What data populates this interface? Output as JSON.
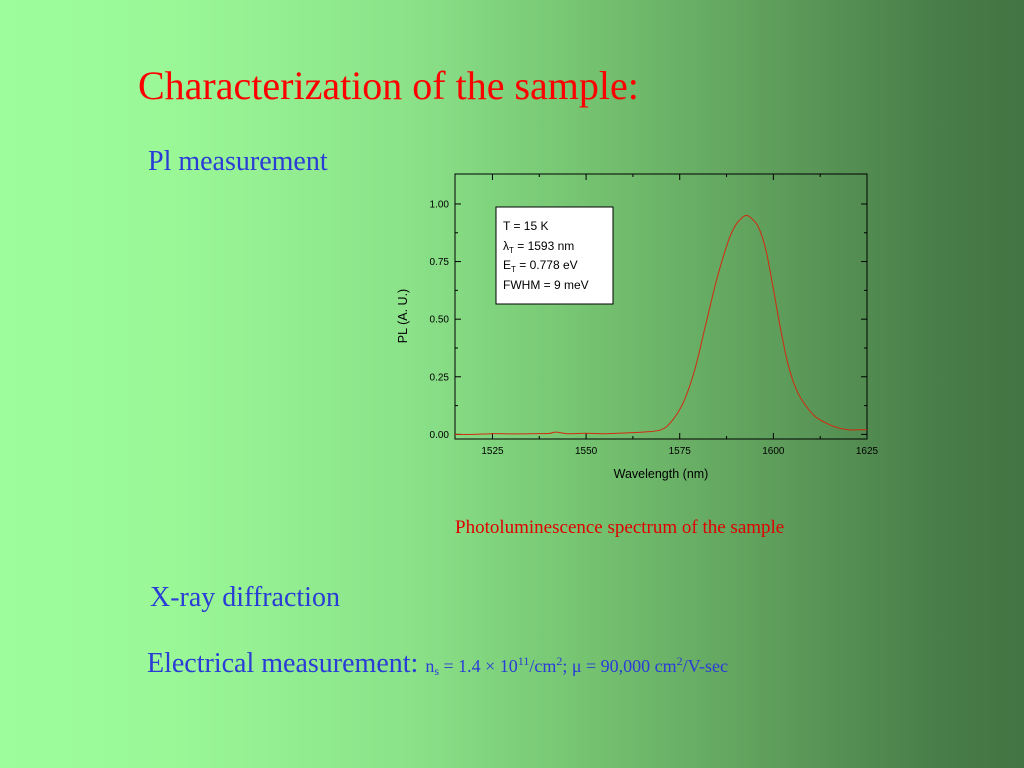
{
  "slide": {
    "title": "Characterization of the sample:",
    "pl_heading": "Pl measurement",
    "caption": "Photoluminescence spectrum of the sample",
    "xray_heading": "X-ray diffraction",
    "electrical": {
      "label": "Electrical measurement:",
      "n": "n",
      "n_sub": "s",
      "eq1": " = 1.4 × 10",
      "exp1": "11",
      "unit1": "/cm",
      "exp2": "2",
      "mu": "; μ = 90,000 cm",
      "exp3": "2",
      "unit2": "/V-sec"
    }
  },
  "colors": {
    "title": "#ff0000",
    "section_text": "#2a3bd6",
    "caption": "#e00000",
    "curve": "#d12a0f"
  },
  "chart_data": {
    "type": "line",
    "xlabel": "Wavelength (nm)",
    "ylabel": "PL (A. U.)",
    "xlim": [
      1515,
      1625
    ],
    "ylim": [
      -0.02,
      1.13
    ],
    "xticks": [
      1525,
      1550,
      1575,
      1600,
      1625
    ],
    "xtick_labels": [
      "1525",
      "1550",
      "1575",
      "1600",
      "1625"
    ],
    "yticks": [
      0,
      0.25,
      0.5,
      0.75,
      1.0
    ],
    "ytick_labels": [
      "0.00",
      "0.25",
      "0.50",
      "0.75",
      "1.00"
    ],
    "grid": false,
    "annotation": {
      "lines": [
        {
          "main": "T = 15 K",
          "sub": "",
          "rest": ""
        },
        {
          "main": "λ",
          "sub": "T",
          "rest": " = 1593 nm"
        },
        {
          "main": "E",
          "sub": "T",
          "rest": " = 0.778 eV"
        },
        {
          "main": "FWHM = 9 meV",
          "sub": "",
          "rest": ""
        }
      ]
    },
    "series": [
      {
        "x": [
          1515,
          1520,
          1525,
          1530,
          1535,
          1540,
          1542,
          1545,
          1550,
          1555,
          1560,
          1565,
          1570,
          1573,
          1576,
          1579,
          1582,
          1585,
          1588,
          1590,
          1592,
          1593,
          1594,
          1596,
          1598,
          1600,
          1602,
          1604,
          1606,
          1608,
          1611,
          1614,
          1617,
          1620,
          1623,
          1625
        ],
        "y": [
          0.0,
          0.0,
          0.003,
          0.002,
          0.003,
          0.004,
          0.01,
          0.003,
          0.005,
          0.003,
          0.006,
          0.01,
          0.02,
          0.06,
          0.14,
          0.28,
          0.48,
          0.68,
          0.84,
          0.91,
          0.945,
          0.95,
          0.94,
          0.9,
          0.8,
          0.63,
          0.45,
          0.3,
          0.2,
          0.14,
          0.08,
          0.05,
          0.03,
          0.02,
          0.02,
          0.02
        ]
      }
    ]
  }
}
